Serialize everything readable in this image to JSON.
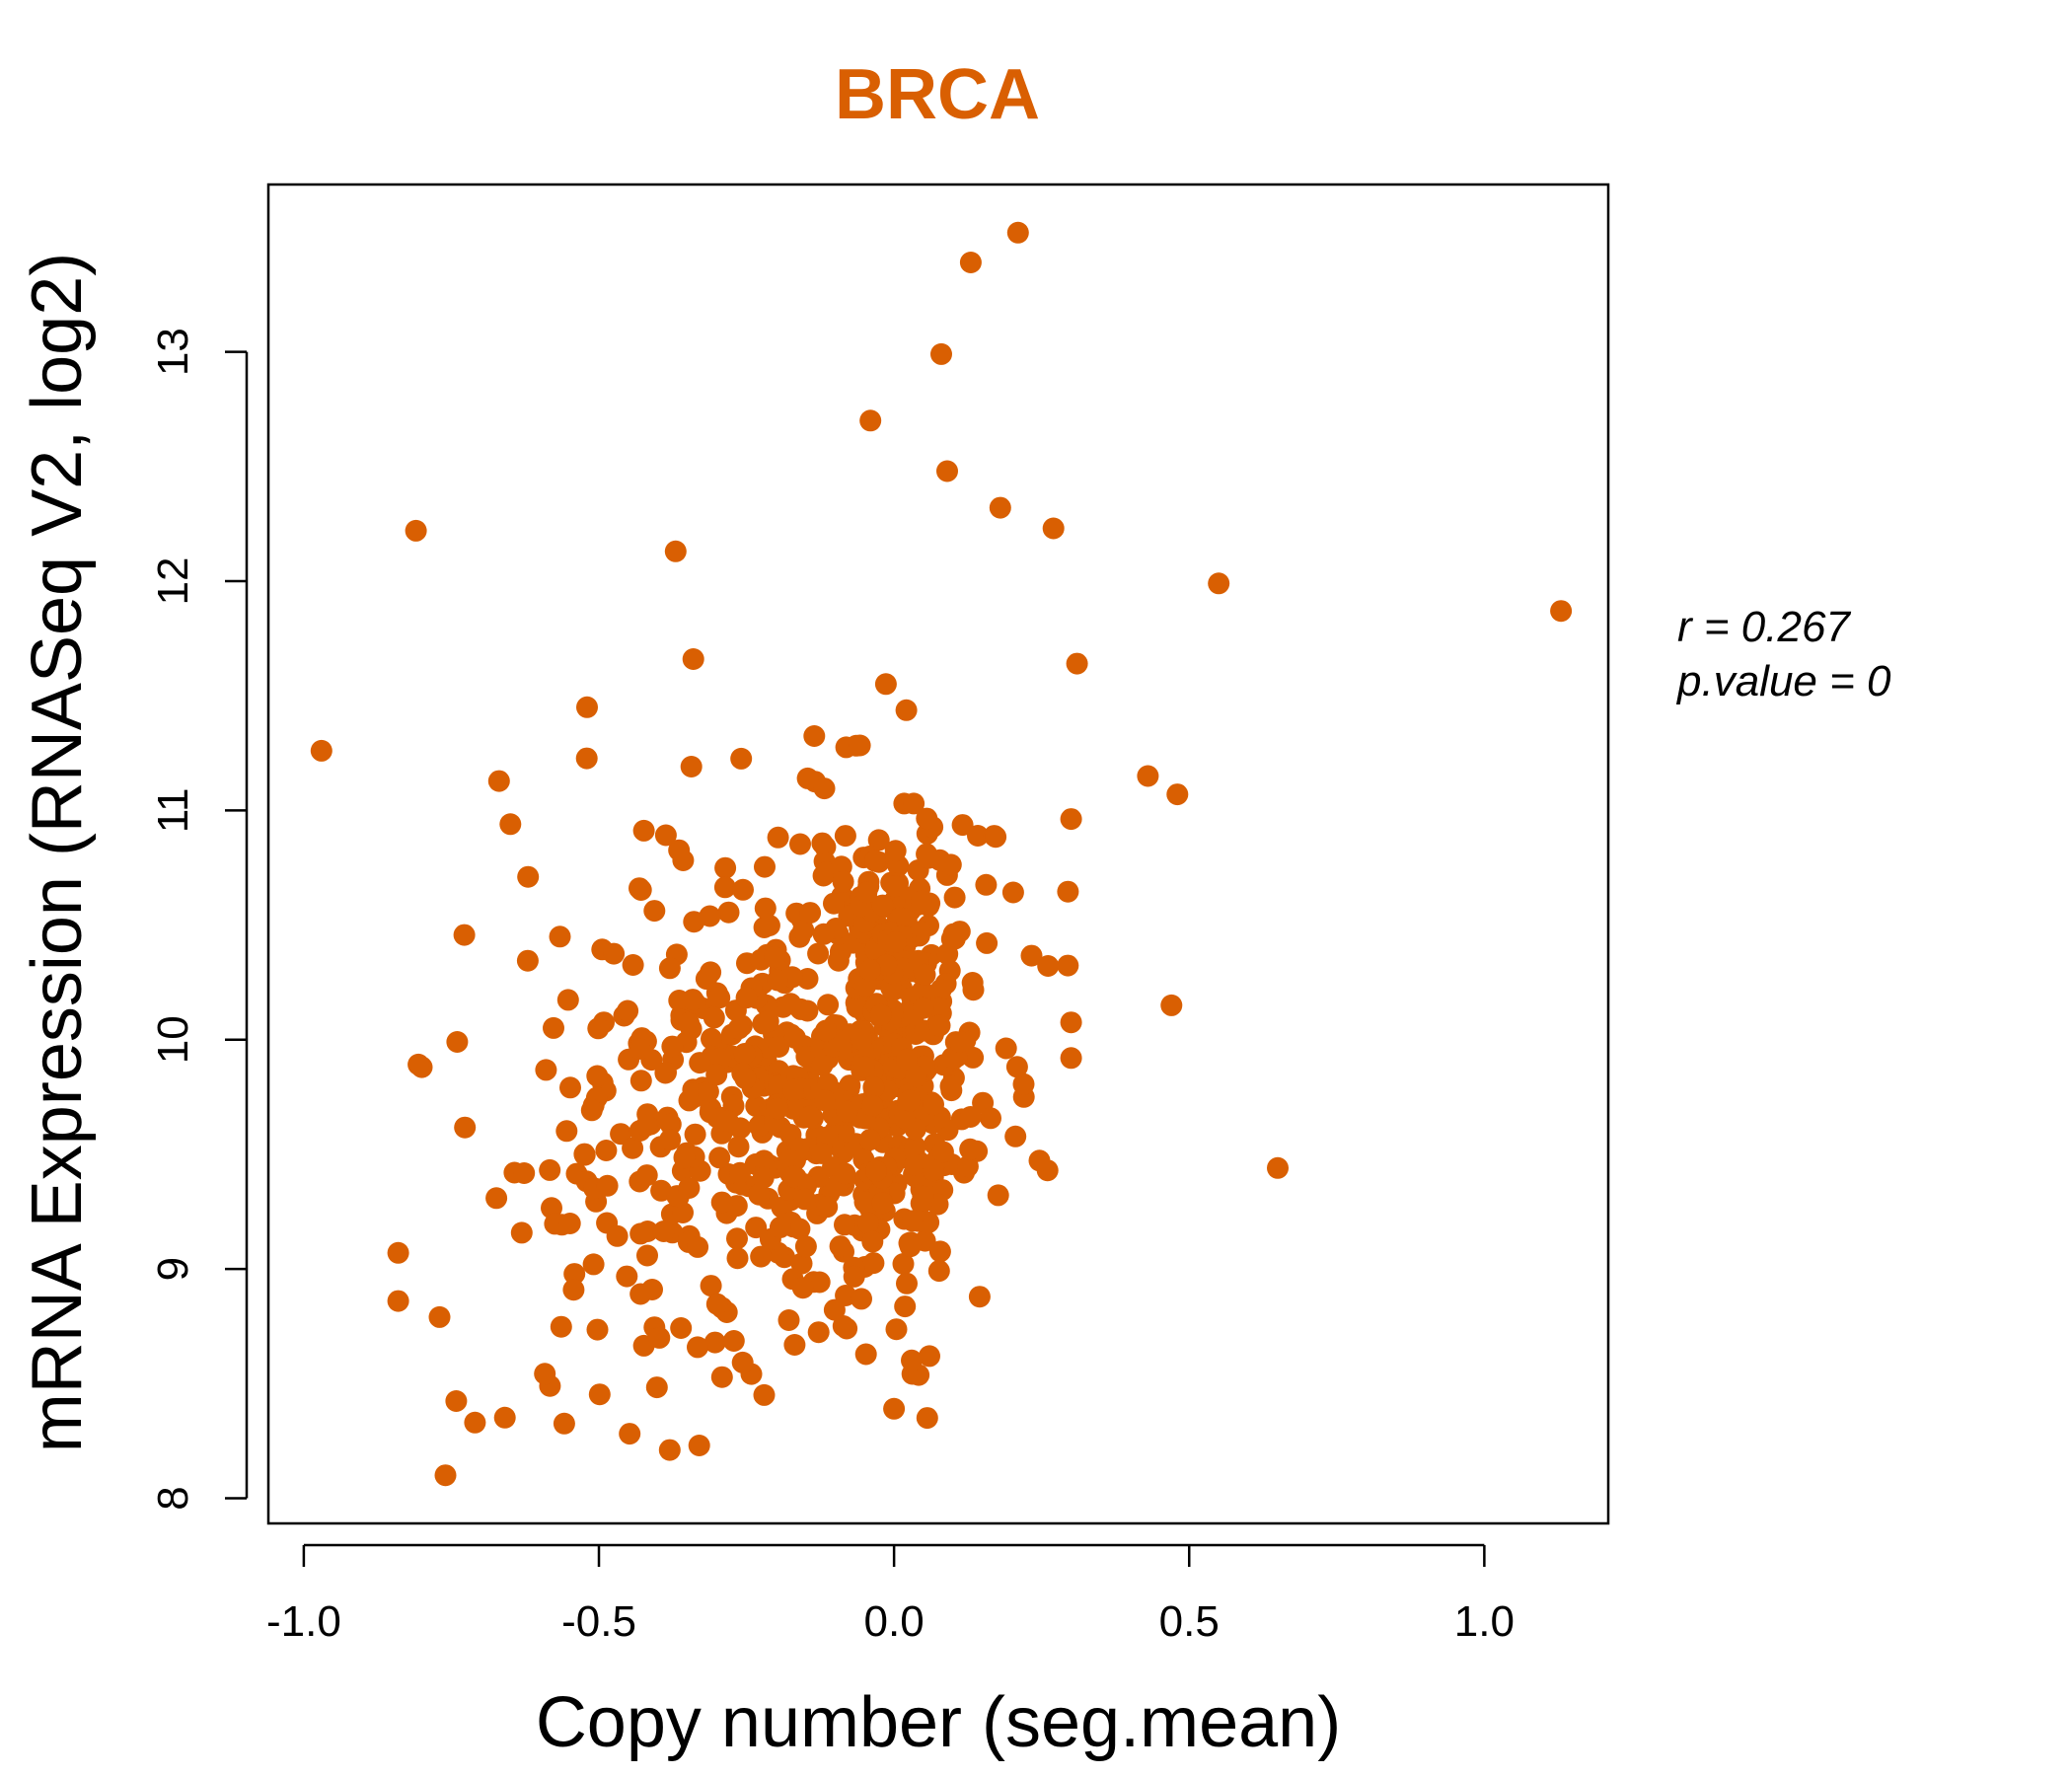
{
  "chart_data": {
    "type": "scatter",
    "title": "BRCA",
    "xlabel": "Copy number (seg.mean)",
    "ylabel": "mRNA Expression (RNASeq V2, log2)",
    "xlim": [
      -1.06,
      1.21
    ],
    "ylim": [
      7.89,
      13.73
    ],
    "x_ticks": [
      -1.0,
      -0.5,
      0.0,
      0.5,
      1.0
    ],
    "x_tick_labels": [
      "-1.0",
      "-0.5",
      "0.0",
      "0.5",
      "1.0"
    ],
    "y_ticks": [
      8,
      9,
      10,
      11,
      12,
      13
    ],
    "y_tick_labels": [
      "8",
      "9",
      "10",
      "11",
      "12",
      "13"
    ],
    "grid": false,
    "legend": "none",
    "annotations": {
      "r_label": "r = 0.267",
      "p_label": "p.value = 0"
    },
    "points_sample": [
      [
        -0.97,
        11.26
      ],
      [
        -0.81,
        12.22
      ],
      [
        -0.37,
        12.13
      ],
      [
        -0.76,
        8.1
      ],
      [
        -0.84,
        8.86
      ],
      [
        0.21,
        13.52
      ],
      [
        0.13,
        13.39
      ],
      [
        0.08,
        12.99
      ],
      [
        -0.04,
        12.7
      ],
      [
        0.09,
        12.48
      ],
      [
        0.18,
        12.32
      ],
      [
        0.27,
        12.23
      ],
      [
        0.55,
        11.99
      ],
      [
        1.13,
        11.87
      ],
      [
        0.43,
        11.15
      ],
      [
        0.48,
        11.07
      ],
      [
        0.47,
        10.15
      ],
      [
        0.65,
        9.44
      ],
      [
        -0.52,
        11.45
      ],
      [
        -0.34,
        11.66
      ],
      [
        -0.65,
        10.94
      ],
      [
        -0.62,
        10.71
      ],
      [
        -0.74,
        9.99
      ],
      [
        -0.8,
        9.88
      ],
      [
        -0.84,
        9.07
      ],
      [
        -0.77,
        8.79
      ],
      [
        -0.71,
        8.33
      ],
      [
        -0.38,
        8.21
      ],
      [
        -0.33,
        8.23
      ],
      [
        0.0,
        8.39
      ],
      [
        0.06,
        8.62
      ],
      [
        -0.22,
        8.45
      ],
      [
        0.26,
        9.43
      ],
      [
        0.22,
        9.75
      ],
      [
        0.31,
        11.64
      ],
      [
        -0.02,
        10.3
      ],
      [
        0.01,
        10.0
      ],
      [
        0.03,
        9.7
      ],
      [
        -0.05,
        10.5
      ],
      [
        -0.1,
        9.6
      ]
    ],
    "color": "#d95f02"
  }
}
